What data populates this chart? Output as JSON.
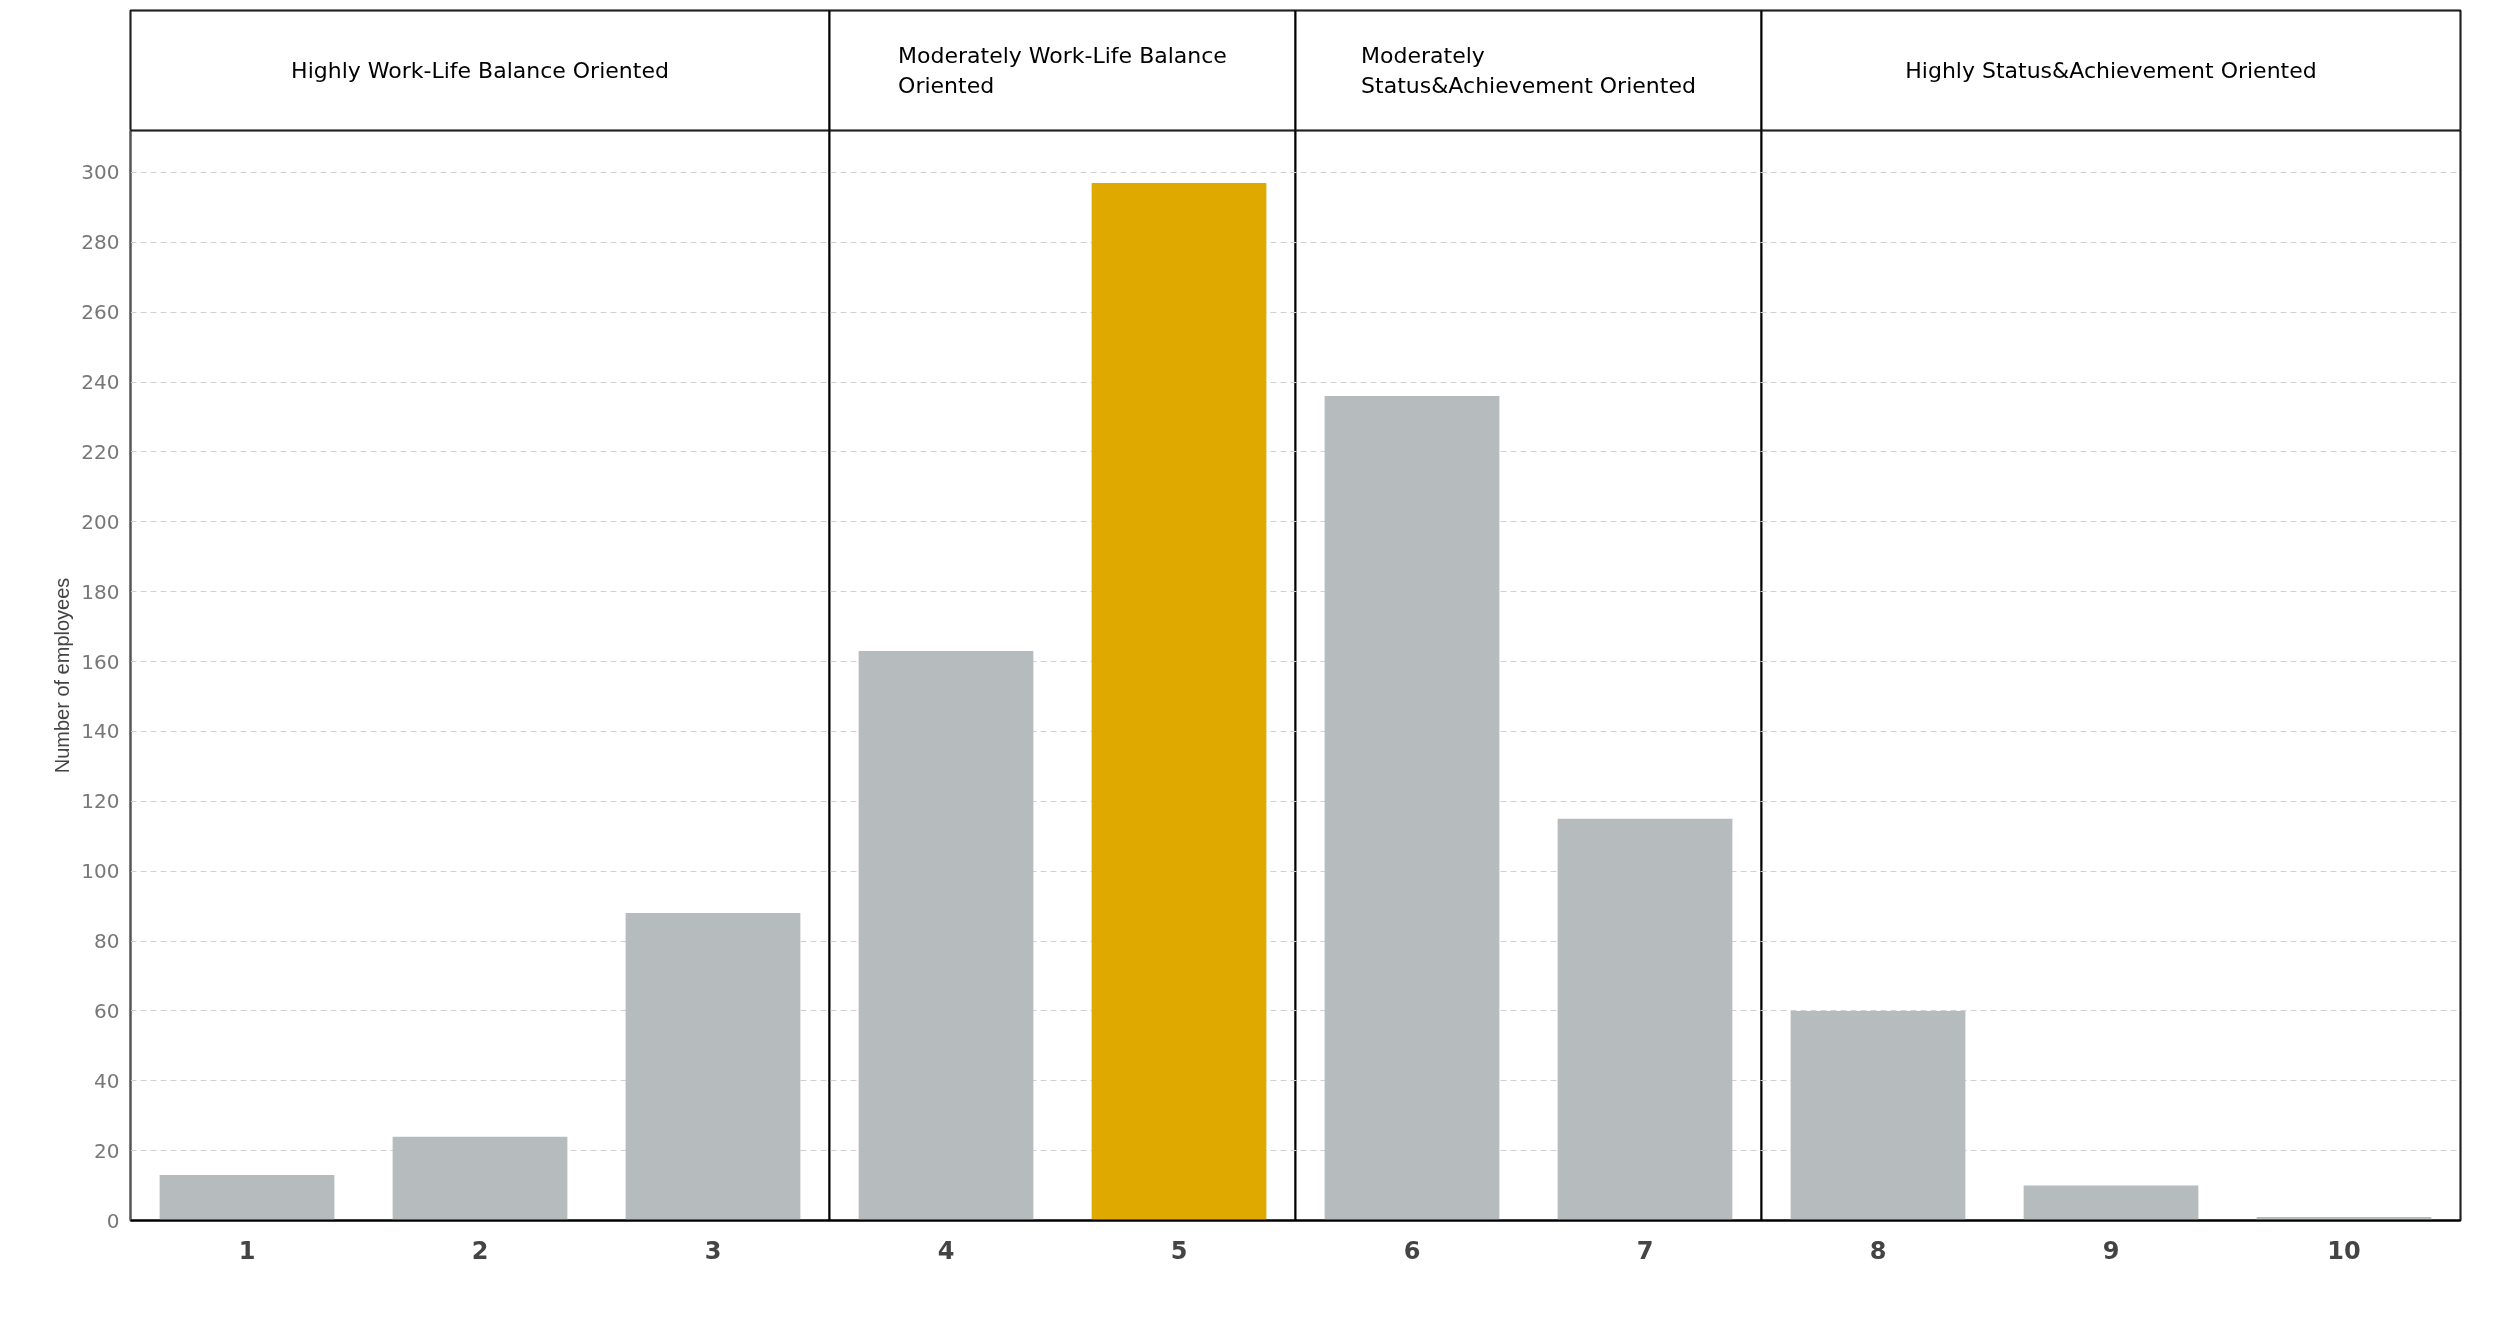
{
  "chart_data": {
    "type": "bar",
    "ylabel": "Number of employees",
    "x": [
      1,
      2,
      3,
      4,
      5,
      6,
      7,
      8,
      9,
      10
    ],
    "values": [
      13,
      24,
      88,
      163,
      297,
      236,
      115,
      60,
      10,
      1
    ],
    "colors": [
      "#b6bbbd",
      "#b6bbbd",
      "#b6bbbd",
      "#b6bbbd",
      "#e0a900",
      "#b6bbbd",
      "#b6bbbd",
      "#b6bbbd",
      "#b6bbbd",
      "#b6bbbd"
    ],
    "xlim": [
      0.5,
      10.5
    ],
    "xticks": [
      1,
      2,
      3,
      4,
      5,
      6,
      7,
      8,
      9,
      10
    ],
    "ylim": [
      0,
      312
    ],
    "yticks": [
      0,
      20,
      40,
      60,
      80,
      100,
      120,
      140,
      160,
      180,
      200,
      220,
      240,
      260,
      280,
      300
    ],
    "grid": "y",
    "bands": [
      {
        "axis": "x",
        "from": 0.5,
        "to": 3.5,
        "color": "#ffffff",
        "label": "Highly Work-Life Balance Oriented"
      },
      {
        "axis": "x",
        "from": 3.5,
        "to": 5.5,
        "color": "#ffffff",
        "label": "Moderately Work-Life Balance Oriented"
      },
      {
        "axis": "x",
        "from": 5.5,
        "to": 7.5,
        "color": "#ffffff",
        "label": "Moderately Status&Achievement Oriented"
      },
      {
        "axis": "x",
        "from": 7.5,
        "to": 10.5,
        "color": "#ffffff",
        "label": "Highly Status&Achievement Oriented"
      }
    ]
  }
}
